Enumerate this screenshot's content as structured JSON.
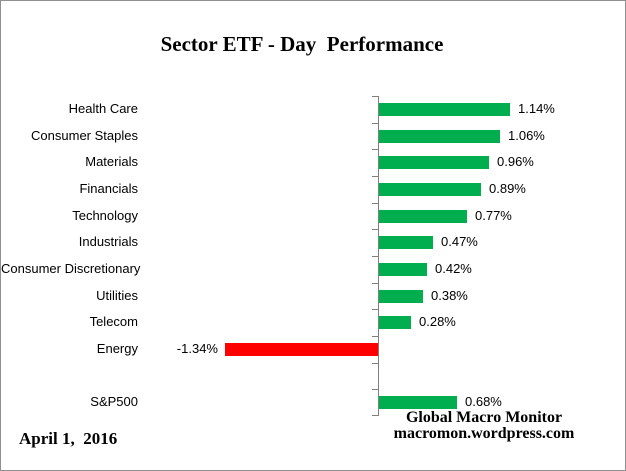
{
  "title": "Sector ETF - Day  Performance",
  "date_label": "April 1,  2016",
  "footer": {
    "line1": "Global Macro Monitor",
    "line2": "macromon.wordpress.com"
  },
  "chart_data": {
    "type": "bar",
    "orientation": "horizontal",
    "title": "Sector ETF - Day  Performance",
    "xlabel": "",
    "ylabel": "",
    "grid": false,
    "legend": false,
    "xlim": [
      -1.75,
      2.1
    ],
    "categories": [
      "Health Care",
      "Consumer Staples",
      "Materials",
      "Financials",
      "Technology",
      "Industrials",
      "Consumer Discretionary",
      "Utilities",
      "Telecom",
      "Energy",
      "",
      "S&P500"
    ],
    "values": [
      1.14,
      1.06,
      0.96,
      0.89,
      0.77,
      0.47,
      0.42,
      0.38,
      0.28,
      -1.34,
      null,
      0.68
    ],
    "value_labels": [
      "1.14%",
      "1.06%",
      "0.96%",
      "0.89%",
      "0.77%",
      "0.47%",
      "0.42%",
      "0.38%",
      "0.28%",
      "-1.34%",
      "",
      "0.68%"
    ],
    "positive_color": "#00AE50",
    "negative_color": "#FF0000",
    "axis_color": "#808080",
    "text_color": "#000000"
  }
}
